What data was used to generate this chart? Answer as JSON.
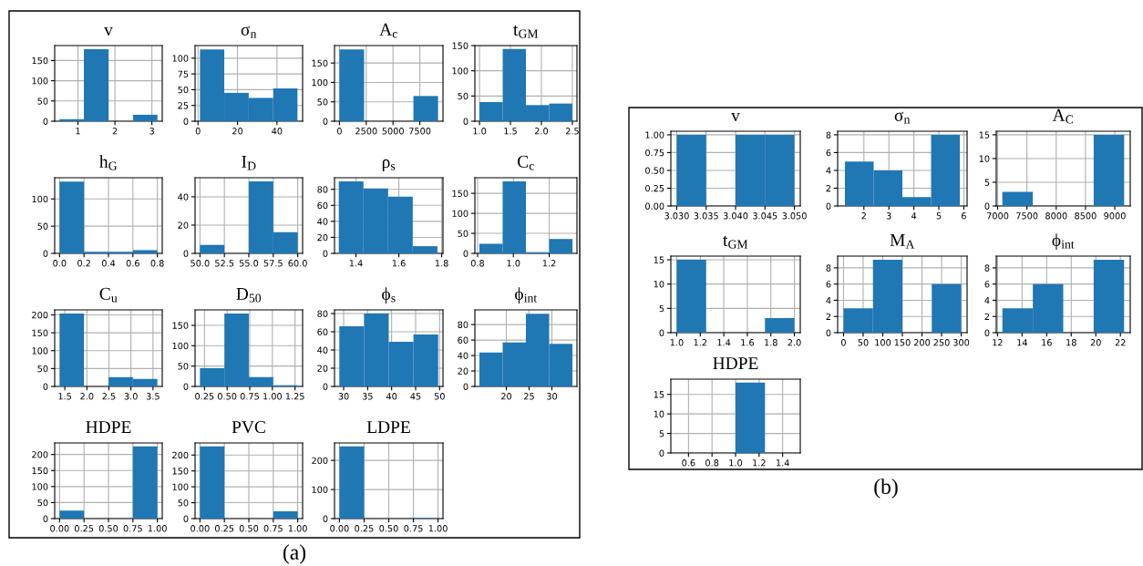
{
  "chart_data": [
    {
      "type": "histogram",
      "title": "v",
      "bins": [
        0.5,
        1.16,
        1.83,
        2.49,
        3.15
      ],
      "values": [
        5,
        178,
        0,
        16
      ],
      "color": "#1f77b4",
      "xlim": [
        0.37,
        3.28
      ],
      "xticks": [
        1,
        2,
        3
      ],
      "ylim": [
        0,
        187
      ],
      "yticks": [
        0,
        50,
        100,
        150
      ],
      "grid": true,
      "annotations": [
        "(a)"
      ]
    },
    {
      "type": "histogram",
      "title": "σ$_{n}$",
      "bins": [
        1,
        13.3,
        25.7,
        38.1,
        50.4
      ],
      "values": [
        114,
        45,
        37,
        52
      ],
      "color": "#1f77b4",
      "xlim": [
        -1.5,
        53
      ],
      "xticks": [
        0,
        20,
        40
      ],
      "ylim": [
        0,
        120
      ],
      "yticks": [
        0,
        25,
        50,
        75,
        100
      ],
      "grid": true
    },
    {
      "type": "histogram",
      "title": "A$_{c}$",
      "bins": [
        0,
        2300,
        4600,
        6900,
        9200
      ],
      "values": [
        185,
        0,
        0,
        65
      ],
      "color": "#1f77b4",
      "xlim": [
        -460,
        9660
      ],
      "xticks": [
        0,
        2500,
        5000,
        7500
      ],
      "ylim": [
        0,
        195
      ],
      "yticks": [
        0,
        50,
        100,
        150
      ],
      "grid": true
    },
    {
      "type": "histogram",
      "title": "t$_{GM}$",
      "bins": [
        1.0,
        1.375,
        1.75,
        2.125,
        2.5
      ],
      "values": [
        38,
        143,
        32,
        35
      ],
      "color": "#1f77b4",
      "xlim": [
        0.925,
        2.575
      ],
      "xticks": [
        {
          "value": 1,
          "label": "1.0"
        },
        {
          "value": 1.5,
          "label": "1.5"
        },
        {
          "value": 2,
          "label": "2.0"
        },
        {
          "value": 2.5,
          "label": "2.5"
        }
      ],
      "ylim": [
        0,
        150
      ],
      "yticks": [
        0,
        50,
        100,
        150
      ],
      "grid": true
    },
    {
      "type": "histogram",
      "title": "h$_{G}$",
      "bins": [
        0,
        0.2,
        0.4,
        0.6,
        0.8
      ],
      "values": [
        132,
        3,
        3,
        6
      ],
      "color": "#1f77b4",
      "xlim": [
        -0.04,
        0.84
      ],
      "xticks": [
        {
          "value": 0,
          "label": "0.0"
        },
        0.2,
        0.4,
        0.6,
        0.8
      ],
      "ylim": [
        0,
        139
      ],
      "yticks": [
        0,
        50,
        100
      ],
      "grid": true
    },
    {
      "type": "histogram",
      "title": "I$_{D}$",
      "bins": [
        50,
        52.5,
        55,
        57.5,
        60
      ],
      "values": [
        6,
        0,
        51,
        15
      ],
      "color": "#1f77b4",
      "xlim": [
        49.5,
        60.5
      ],
      "xticks": [
        {
          "value": 50,
          "label": "50.0"
        },
        52.5,
        {
          "value": 55,
          "label": "55.0"
        },
        57.5,
        {
          "value": 60,
          "label": "60.0"
        }
      ],
      "ylim": [
        0,
        53.5
      ],
      "yticks": [
        0,
        20,
        40
      ],
      "grid": true
    },
    {
      "type": "histogram",
      "title": "ρ$_{s}$",
      "bins": [
        1.32,
        1.435,
        1.55,
        1.665,
        1.78
      ],
      "values": [
        90,
        81,
        71,
        9
      ],
      "color": "#1f77b4",
      "xlim": [
        1.3,
        1.806
      ],
      "xticks": [
        1.4,
        1.6,
        1.8
      ],
      "ylim": [
        0,
        94.5
      ],
      "yticks": [
        0,
        20,
        40,
        60,
        80
      ],
      "grid": true
    },
    {
      "type": "histogram",
      "title": "C$_{c}$",
      "bins": [
        0.81,
        0.94,
        1.07,
        1.2,
        1.33
      ],
      "values": [
        24,
        180,
        3,
        36
      ],
      "color": "#1f77b4",
      "xlim": [
        0.785,
        1.355
      ],
      "xticks": [
        0.8,
        {
          "value": 1,
          "label": "1.0"
        },
        1.2
      ],
      "ylim": [
        0,
        189
      ],
      "yticks": [
        0,
        50,
        100,
        150
      ],
      "grid": true
    },
    {
      "type": "histogram",
      "title": "C$_{u}$",
      "bins": [
        1.38,
        1.935,
        2.49,
        3.045,
        3.6
      ],
      "values": [
        204,
        0,
        26,
        21
      ],
      "color": "#1f77b4",
      "xlim": [
        1.27,
        3.71
      ],
      "xticks": [
        1.5,
        {
          "value": 2,
          "label": "2.0"
        },
        2.5,
        {
          "value": 3,
          "label": "3.0"
        },
        3.5
      ],
      "ylim": [
        0,
        214
      ],
      "yticks": [
        0,
        50,
        100,
        150,
        200
      ],
      "grid": true
    },
    {
      "type": "histogram",
      "title": "D$_{50}$",
      "bins": [
        0.2,
        0.47,
        0.74,
        1.01,
        1.28
      ],
      "values": [
        45,
        179,
        23,
        3
      ],
      "color": "#1f77b4",
      "xlim": [
        0.146,
        1.334
      ],
      "xticks": [
        0.25,
        {
          "value": 0.5,
          "label": "0.50"
        },
        0.75,
        {
          "value": 1,
          "label": "1.00"
        },
        1.25
      ],
      "ylim": [
        0,
        188
      ],
      "yticks": [
        0,
        50,
        100,
        150
      ],
      "grid": true
    },
    {
      "type": "histogram",
      "title": "ϕ$_{s}$",
      "bins": [
        29.1,
        34.25,
        39.4,
        44.55,
        49.7
      ],
      "values": [
        66,
        80,
        49,
        57
      ],
      "color": "#1f77b4",
      "xlim": [
        28.1,
        50.7
      ],
      "xticks": [
        30,
        35,
        40,
        45,
        50
      ],
      "ylim": [
        0,
        84
      ],
      "yticks": [
        0,
        20,
        40,
        60,
        80
      ],
      "grid": true
    },
    {
      "type": "histogram",
      "title": "ϕ$_{int}$",
      "bins": [
        14.1,
        19.2,
        24.3,
        29.4,
        34.5
      ],
      "values": [
        44,
        57,
        94,
        55
      ],
      "color": "#1f77b4",
      "xlim": [
        13.1,
        35.5
      ],
      "xticks": [
        20,
        25,
        30
      ],
      "ylim": [
        0,
        99
      ],
      "yticks": [
        0,
        20,
        40,
        60,
        80
      ],
      "grid": true
    },
    {
      "type": "histogram",
      "title": "HDPE",
      "bins": [
        0,
        0.25,
        0.5,
        0.75,
        1
      ],
      "values": [
        25,
        0,
        0,
        225
      ],
      "color": "#1f77b4",
      "xlim": [
        -0.05,
        1.05
      ],
      "xticks": [
        {
          "value": 0,
          "label": "0.00"
        },
        0.25,
        {
          "value": 0.5,
          "label": "0.50"
        },
        0.75,
        {
          "value": 1,
          "label": "1.00"
        }
      ],
      "ylim": [
        0,
        236
      ],
      "yticks": [
        0,
        50,
        100,
        150,
        200
      ],
      "grid": true
    },
    {
      "type": "histogram",
      "title": "PVC",
      "bins": [
        0,
        0.25,
        0.5,
        0.75,
        1
      ],
      "values": [
        227,
        0,
        0,
        23
      ],
      "color": "#1f77b4",
      "xlim": [
        -0.05,
        1.05
      ],
      "xticks": [
        {
          "value": 0,
          "label": "0.00"
        },
        0.25,
        {
          "value": 0.5,
          "label": "0.50"
        },
        0.75,
        {
          "value": 1,
          "label": "1.00"
        }
      ],
      "ylim": [
        0,
        238
      ],
      "yticks": [
        0,
        50,
        100,
        150,
        200
      ],
      "grid": true
    },
    {
      "type": "histogram",
      "title": "LDPE",
      "bins": [
        0,
        0.25,
        0.5,
        0.75,
        1
      ],
      "values": [
        248,
        0,
        0,
        2
      ],
      "color": "#1f77b4",
      "xlim": [
        -0.05,
        1.05
      ],
      "xticks": [
        {
          "value": 0,
          "label": "0.00"
        },
        0.25,
        {
          "value": 0.5,
          "label": "0.50"
        },
        0.75,
        {
          "value": 1,
          "label": "1.00"
        }
      ],
      "ylim": [
        0,
        260
      ],
      "yticks": [
        0,
        100,
        200
      ],
      "grid": true
    },
    {
      "type": "histogram",
      "title": "v",
      "bins": [
        3.03,
        3.035,
        3.04,
        3.045,
        3.05
      ],
      "values": [
        1,
        0,
        1,
        1
      ],
      "color": "#1f77b4",
      "xlim": [
        3.029,
        3.051
      ],
      "xticks": [
        {
          "value": 3.03,
          "label": "3.030"
        },
        3.035,
        {
          "value": 3.04,
          "label": "3.040"
        },
        3.045,
        {
          "value": 3.05,
          "label": "3.050"
        }
      ],
      "ylim": [
        0,
        1.05
      ],
      "yticks": [
        {
          "value": 0,
          "label": "0.00"
        },
        0.25,
        {
          "value": 0.5,
          "label": "0.50"
        },
        0.75,
        {
          "value": 1,
          "label": "1.00"
        }
      ],
      "grid": true,
      "annotations": [
        "(b)"
      ]
    },
    {
      "type": "histogram",
      "title": "σ$_{n}$",
      "bins": [
        1.24,
        2.39,
        3.54,
        4.69,
        5.84
      ],
      "values": [
        5,
        4,
        1,
        8
      ],
      "color": "#1f77b4",
      "xlim": [
        0.95,
        6.13
      ],
      "xticks": [
        2,
        3,
        4,
        5,
        6
      ],
      "ylim": [
        0,
        8.4
      ],
      "yticks": [
        0,
        2,
        4,
        6,
        8
      ],
      "grid": true
    },
    {
      "type": "histogram",
      "title": "A$_{C}$",
      "bins": [
        7080,
        7600,
        8120,
        8640,
        9160
      ],
      "values": [
        3,
        0,
        0,
        15
      ],
      "color": "#1f77b4",
      "xlim": [
        6976,
        9264
      ],
      "xticks": [
        7000,
        7500,
        8000,
        8500,
        9000
      ],
      "ylim": [
        0,
        15.75
      ],
      "yticks": [
        0,
        5,
        10,
        15
      ],
      "grid": true
    },
    {
      "type": "histogram",
      "title": "t$_{GM}$",
      "bins": [
        1,
        1.25,
        1.5,
        1.75,
        2
      ],
      "values": [
        15,
        0,
        0,
        3
      ],
      "color": "#1f77b4",
      "xlim": [
        0.95,
        2.05
      ],
      "xticks": [
        {
          "value": 1,
          "label": "1.0"
        },
        1.2,
        1.4,
        1.6,
        1.8,
        {
          "value": 2,
          "label": "2.0"
        }
      ],
      "ylim": [
        0,
        15.75
      ],
      "yticks": [
        0,
        5,
        10,
        15
      ],
      "grid": true
    },
    {
      "type": "histogram",
      "title": "M$_{A}$",
      "bins": [
        0,
        75,
        150,
        225,
        300
      ],
      "values": [
        3,
        9,
        0,
        6
      ],
      "color": "#1f77b4",
      "xlim": [
        -15,
        315
      ],
      "xticks": [
        0,
        50,
        100,
        150,
        200,
        250,
        300
      ],
      "ylim": [
        0,
        9.45
      ],
      "yticks": [
        0,
        2,
        4,
        6,
        8
      ],
      "grid": true
    },
    {
      "type": "histogram",
      "title": "ϕ$_{int}$",
      "bins": [
        12.4,
        14.875,
        17.35,
        19.825,
        22.3
      ],
      "values": [
        3,
        6,
        0,
        9
      ],
      "color": "#1f77b4",
      "xlim": [
        11.9,
        22.8
      ],
      "xticks": [
        12,
        14,
        16,
        18,
        20,
        22
      ],
      "ylim": [
        0,
        9.45
      ],
      "yticks": [
        0,
        2,
        4,
        6,
        8
      ],
      "grid": true
    },
    {
      "type": "histogram",
      "title": "HDPE",
      "bins": [
        0.5,
        0.75,
        1,
        1.25,
        1.5
      ],
      "values": [
        0,
        0,
        18,
        0
      ],
      "color": "#1f77b4",
      "xlim": [
        0.45,
        1.55
      ],
      "xticks": [
        0.6,
        0.8,
        {
          "value": 1,
          "label": "1.0"
        },
        1.2,
        1.4
      ],
      "ylim": [
        0,
        18.9
      ],
      "yticks": [
        0,
        5,
        10,
        15
      ],
      "grid": true
    }
  ]
}
